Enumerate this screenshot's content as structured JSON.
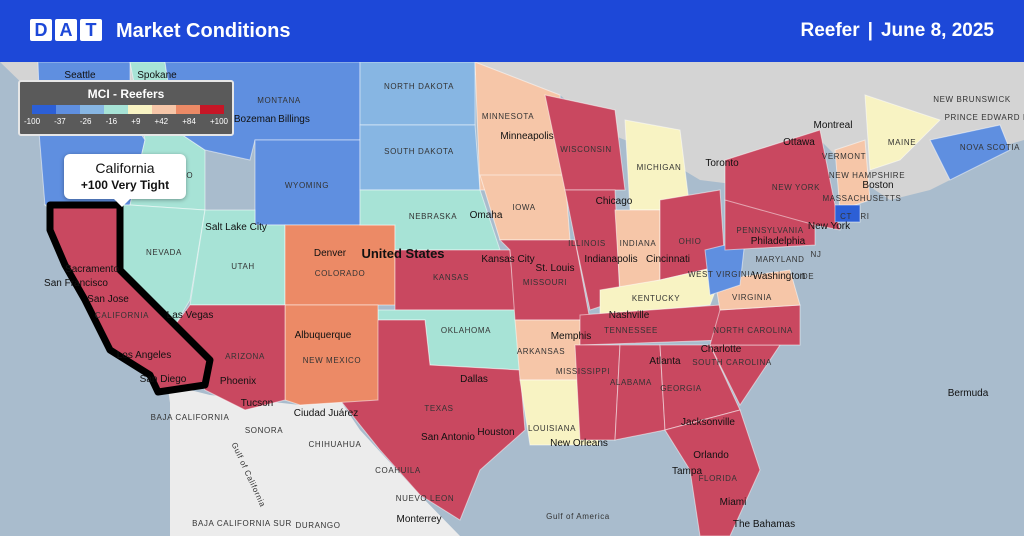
{
  "header": {
    "logo_letters": [
      "D",
      "A",
      "T"
    ],
    "title": "Market Conditions",
    "equipment": "Reefer",
    "separator": "|",
    "date": "June 8, 2025"
  },
  "legend": {
    "title": "MCI - Reefers",
    "ticks": [
      "-100",
      "-37",
      "-26",
      "-16",
      "+9",
      "+42",
      "+84",
      "+100"
    ],
    "colors": [
      "#2c5fd6",
      "#5f8fe0",
      "#87b6e3",
      "#a7e3d6",
      "#f8f3c3",
      "#f6c6a8",
      "#ec8a66",
      "#c61626"
    ]
  },
  "callout": {
    "name": "California",
    "value": "+100 Very Tight"
  },
  "map_labels": {
    "states": [
      "MONTANA",
      "NORTH DAKOTA",
      "MINNESOTA",
      "SOUTH DAKOTA",
      "WYOMING",
      "IDAHO",
      "WISCONSIN",
      "MICHIGAN",
      "IOWA",
      "NEBRASKA",
      "NEVADA",
      "UTAH",
      "COLORADO",
      "KANSAS",
      "MISSOURI",
      "ILLINOIS",
      "INDIANA",
      "OHIO",
      "PENNSYLVANIA",
      "NEW YORK",
      "VERMONT",
      "NEW HAMPSHIRE",
      "MAINE",
      "MASSACHUSETTS",
      "CT",
      "RI",
      "MARYLAND",
      "NJ",
      "DE",
      "WEST VIRGINIA",
      "VIRGINIA",
      "KENTUCKY",
      "TENNESSEE",
      "NORTH CAROLINA",
      "SOUTH CAROLINA",
      "GEORGIA",
      "ALABAMA",
      "MISSISSIPPI",
      "ARKANSAS",
      "LOUISIANA",
      "OKLAHOMA",
      "TEXAS",
      "NEW MEXICO",
      "ARIZONA",
      "CALIFORNIA",
      "FLORIDA",
      "NEW BRUNSWICK",
      "PRINCE EDWARD ISLAND",
      "NOVA SCOTIA",
      "BAJA CALIFORNIA",
      "SONORA",
      "CHIHUAHUA",
      "COAHUILA",
      "NUEVO LEON",
      "BAJA CALIFORNIA SUR",
      "DURANGO",
      "Gulf of California",
      "Gulf of America"
    ],
    "cities": [
      "Seattle",
      "Spokane",
      "Bozeman",
      "Billings",
      "Minneapolis",
      "Montreal",
      "Ottawa",
      "Toronto",
      "Chicago",
      "Omaha",
      "Salt Lake City",
      "Denver",
      "United States",
      "Kansas City",
      "St. Louis",
      "Indianapolis",
      "Cincinnati",
      "Philadelphia",
      "New York",
      "Boston",
      "Washington",
      "Sacramento",
      "San Francisco",
      "San Jose",
      "Las Vegas",
      "Los Angeles",
      "San Diego",
      "Albuquerque",
      "Phoenix",
      "Tucson",
      "Nashville",
      "Memphis",
      "Atlanta",
      "Charlotte",
      "Dallas",
      "San Antonio",
      "Houston",
      "New Orleans",
      "Jacksonville",
      "Orlando",
      "Tampa",
      "Miami",
      "Ciudad Juárez",
      "Monterrey",
      "Bermuda",
      "The Bahamas"
    ]
  }
}
